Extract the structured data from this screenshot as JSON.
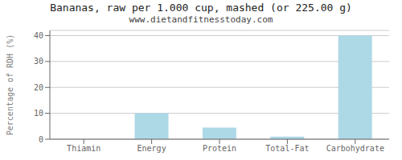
{
  "chart_data": {
    "type": "bar",
    "title": "Bananas, raw per 1.000 cup, mashed (or 225.00 g)",
    "subtitle": "www.dietandfitnesstoday.com",
    "categories": [
      "Thiamin",
      "Energy",
      "Protein",
      "Total-Fat",
      "Carbohydrate"
    ],
    "values": [
      0,
      10,
      4.5,
      1,
      40
    ],
    "color": "#add8e6",
    "ylabel": "Percentage of RDH (%)",
    "ylim": [
      0,
      42
    ],
    "yticks": [
      0,
      10,
      20,
      30,
      40
    ],
    "grid": true
  }
}
